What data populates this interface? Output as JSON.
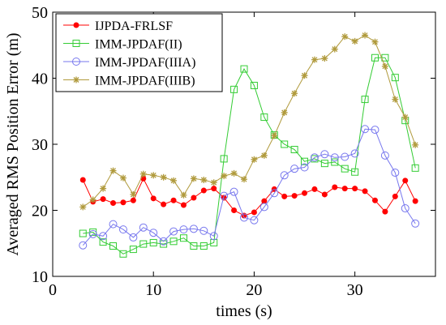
{
  "chart_data": {
    "type": "line",
    "xlabel": "times (s)",
    "ylabel": "Averaged RMS Position Error (m)",
    "xlim": [
      0,
      38
    ],
    "ylim": [
      10,
      50
    ],
    "x_ticks": [
      0,
      10,
      20,
      30
    ],
    "y_ticks": [
      10,
      20,
      30,
      40,
      50
    ],
    "grid": false,
    "legend_position": "top-left",
    "series": [
      {
        "name": "IJPDA-FRLSF",
        "color": "#ff0000",
        "marker": "dot",
        "x": [
          3,
          4,
          5,
          6,
          7,
          8,
          9,
          10,
          11,
          12,
          13,
          14,
          15,
          16,
          17,
          18,
          19,
          20,
          21,
          22,
          23,
          24,
          25,
          26,
          27,
          28,
          29,
          30,
          31,
          32,
          33,
          34,
          35,
          36
        ],
        "y": [
          24.6,
          21.3,
          21.7,
          21.1,
          21.2,
          21.5,
          24.8,
          21.8,
          20.9,
          21.5,
          20.8,
          21.9,
          23.0,
          23.3,
          21.9,
          20.0,
          19.2,
          19.7,
          21.4,
          23.2,
          22.1,
          22.2,
          22.6,
          23.2,
          22.4,
          23.5,
          23.3,
          23.3,
          22.9,
          21.5,
          19.8,
          22.1,
          24.5,
          21.4
        ]
      },
      {
        "name": "IMM-JPDAF(II)",
        "color": "#33cc33",
        "marker": "square",
        "x": [
          3,
          4,
          5,
          6,
          7,
          8,
          9,
          10,
          11,
          12,
          13,
          14,
          15,
          16,
          17,
          18,
          19,
          20,
          21,
          22,
          23,
          24,
          25,
          26,
          27,
          28,
          29,
          30,
          31,
          32,
          33,
          34,
          35,
          36
        ],
        "y": [
          16.5,
          16.7,
          15.2,
          14.6,
          13.4,
          14.1,
          14.9,
          15.1,
          14.9,
          15.3,
          15.8,
          14.6,
          14.6,
          15.1,
          27.8,
          38.3,
          41.4,
          38.9,
          34.1,
          31.4,
          30.0,
          29.2,
          27.4,
          27.8,
          27.1,
          27.3,
          26.3,
          25.8,
          36.8,
          43.1,
          43.1,
          40.1,
          33.6,
          26.4
        ]
      },
      {
        "name": "IMM-JPDAF(IIIA)",
        "color": "#7777ee",
        "marker": "circle",
        "x": [
          3,
          4,
          5,
          6,
          7,
          8,
          9,
          10,
          11,
          12,
          13,
          14,
          15,
          16,
          17,
          18,
          19,
          20,
          21,
          22,
          23,
          24,
          25,
          26,
          27,
          28,
          29,
          30,
          31,
          32,
          33,
          34,
          35,
          36
        ],
        "y": [
          14.7,
          16.4,
          16.1,
          17.9,
          17.1,
          15.9,
          17.4,
          16.6,
          15.3,
          16.8,
          17.1,
          17.2,
          16.9,
          16.1,
          22.2,
          22.8,
          18.9,
          18.5,
          20.5,
          22.6,
          25.3,
          26.3,
          26.5,
          28.0,
          28.5,
          28.0,
          28.1,
          28.6,
          32.3,
          32.2,
          28.3,
          25.7,
          20.3,
          18.0
        ]
      },
      {
        "name": "IMM-JPDAF(IIIB)",
        "color": "#b09a3c",
        "marker": "asterisk",
        "x": [
          3,
          4,
          5,
          6,
          7,
          8,
          9,
          10,
          11,
          12,
          13,
          14,
          15,
          16,
          17,
          18,
          19,
          20,
          21,
          22,
          23,
          24,
          25,
          26,
          27,
          28,
          29,
          30,
          31,
          32,
          33,
          34,
          35,
          36
        ],
        "y": [
          20.5,
          21.6,
          23.3,
          26.0,
          24.9,
          22.4,
          25.5,
          25.3,
          25.0,
          24.5,
          22.3,
          24.8,
          24.6,
          24.2,
          25.2,
          25.6,
          24.7,
          27.7,
          28.3,
          31.3,
          34.8,
          37.7,
          40.4,
          42.8,
          43.0,
          44.4,
          46.3,
          45.6,
          46.5,
          45.5,
          41.8,
          36.8,
          34.1,
          29.9
        ]
      }
    ]
  }
}
